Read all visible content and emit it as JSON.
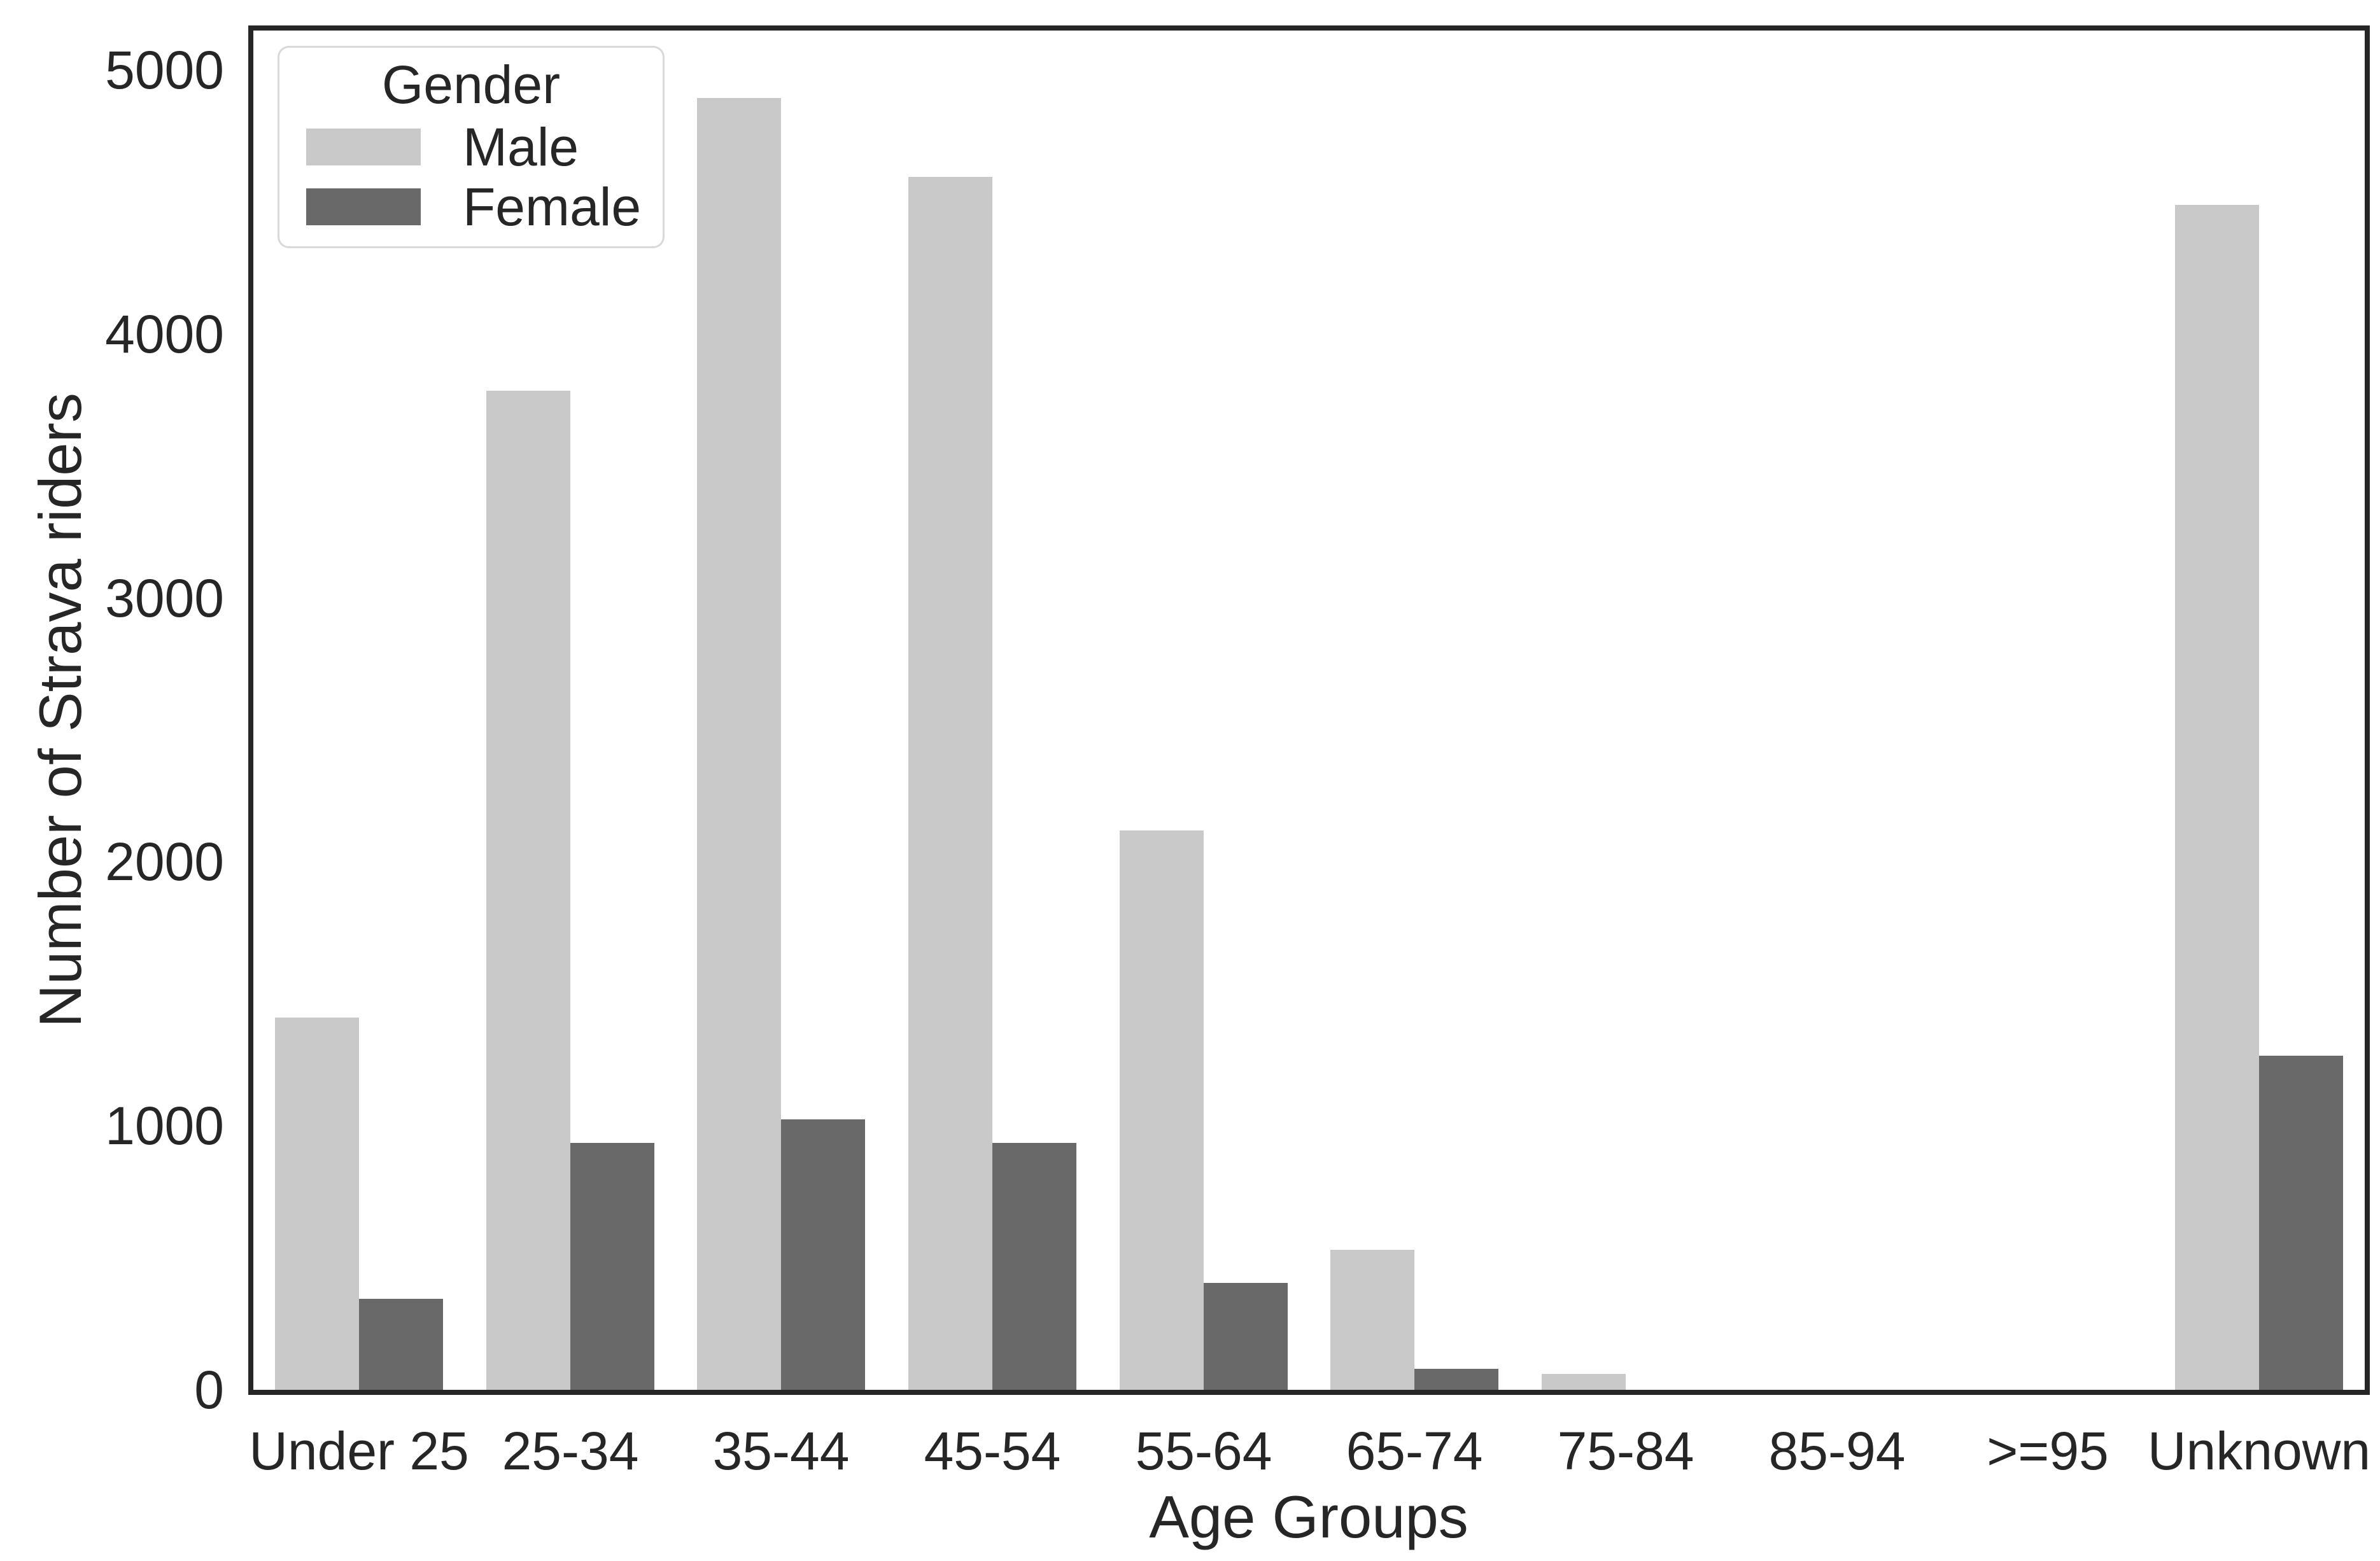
{
  "chart_data": {
    "type": "bar",
    "title": "",
    "xlabel": "Age Groups",
    "ylabel": "Number of Strava riders",
    "categories": [
      "Under 25",
      "25-34",
      "35-44",
      "45-54",
      "55-64",
      "65-74",
      "75-84",
      "85-94",
      ">=95",
      "Unknown"
    ],
    "series": [
      {
        "name": "Male",
        "color": "#c9c9c9",
        "values": [
          1410,
          3785,
          4895,
          4595,
          2120,
          530,
          60,
          0,
          0,
          4490
        ]
      },
      {
        "name": "Female",
        "color": "#696969",
        "values": [
          345,
          935,
          1025,
          935,
          405,
          80,
          0,
          0,
          0,
          1265
        ]
      }
    ],
    "ylim": [
      0,
      5150
    ],
    "yticks": [
      0,
      1000,
      2000,
      3000,
      4000,
      5000
    ],
    "legend": {
      "title": "Gender",
      "position": "upper left"
    },
    "grid": false,
    "background_color": "#ffffff",
    "text_color": "#262626",
    "spine_color": "#262626"
  }
}
